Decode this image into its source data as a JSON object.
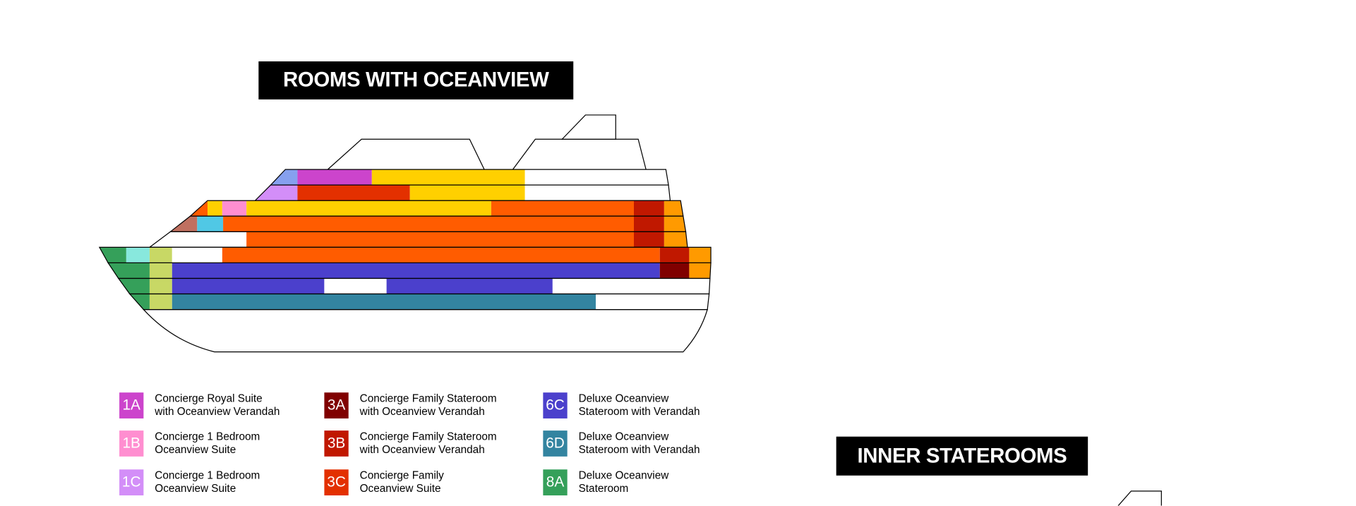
{
  "oceanview_title": "ROOMS WITH OCEANVIEW",
  "inner_title": "INNER STATEROOMS",
  "deck_colors": {
    "orange": "#ff5c00",
    "yellow": "#ffd000",
    "amber": "#ff9a00",
    "periwinkle": "#86a0ef",
    "brown": "#c07060",
    "cyan": "#50c8e5",
    "mint": "#88e8dd",
    "lime": "#c8d865"
  },
  "legend": [
    {
      "code": "1A",
      "label": "Concierge Royal Suite\nwith Oceanview Verandah",
      "color": "#cc44cc"
    },
    {
      "code": "1B",
      "label": "Concierge 1 Bedroom\nOceanview Suite",
      "color": "#ff8ed0"
    },
    {
      "code": "1C",
      "label": "Concierge 1 Bedroom\nOceanview Suite",
      "color": "#d38ef8"
    },
    {
      "code": "3A",
      "label": "Concierge Family Stateroom\nwith Oceanview Verandah",
      "color": "#800000"
    },
    {
      "code": "3B",
      "label": "Concierge Family Stateroom\nwith Oceanview Verandah",
      "color": "#c01800"
    },
    {
      "code": "3C",
      "label": "Concierge Family\nOceanview Suite",
      "color": "#e33000"
    },
    {
      "code": "6C",
      "label": "Deluxe Oceanview\nStateroom with Verandah",
      "color": "#4b40cc"
    },
    {
      "code": "6D",
      "label": "Deluxe Oceanview\nStateroom with Verandah",
      "color": "#3384a0"
    },
    {
      "code": "8A",
      "label": "Deluxe Oceanview\nStateroom",
      "color": "#35a05a"
    }
  ]
}
